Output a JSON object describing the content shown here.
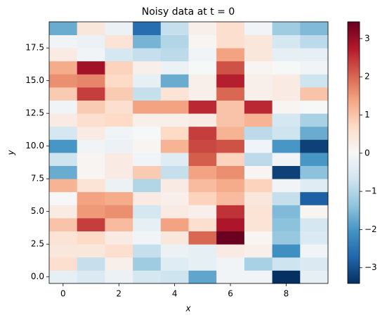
{
  "chart_data": {
    "type": "heatmap",
    "title": "Noisy data at t = 0",
    "xlabel": "x",
    "ylabel": "y",
    "xlim": [
      -0.5,
      9.5
    ],
    "ylim": [
      -0.5,
      19.5
    ],
    "xticks": [
      0,
      2,
      4,
      6,
      8
    ],
    "yticks": [
      {
        "value": 0,
        "label": "0.0"
      },
      {
        "value": 2.5,
        "label": "2.5"
      },
      {
        "value": 5,
        "label": "5.0"
      },
      {
        "value": 7.5,
        "label": "7.5"
      },
      {
        "value": 10,
        "label": "10.0"
      },
      {
        "value": 12.5,
        "label": "12.5"
      },
      {
        "value": 15,
        "label": "15.0"
      },
      {
        "value": 17.5,
        "label": "17.5"
      }
    ],
    "clim": [
      -3.41,
      3.44
    ],
    "cticks": [
      {
        "value": -3,
        "label": "−3"
      },
      {
        "value": -2,
        "label": "−2"
      },
      {
        "value": -1,
        "label": "−1"
      },
      0,
      1,
      2,
      3
    ],
    "colormap": [
      "#053061",
      "#2166ac",
      "#4393c3",
      "#92c5de",
      "#d1e5f0",
      "#f7f7f7",
      "#fddbc7",
      "#f4a582",
      "#d6604d",
      "#b2182b",
      "#67001f"
    ],
    "z": [
      [
        -0.3,
        -0.5,
        -0.2,
        -0.6,
        -0.7,
        -1.8,
        -0.1,
        -0.1,
        -3.4,
        -0.3
      ],
      [
        0.6,
        -0.8,
        0.2,
        -1.2,
        -0.4,
        -0.3,
        -0.1,
        -1.1,
        -0.7,
        -0.5
      ],
      [
        0.4,
        0.4,
        0.6,
        -0.8,
        -0.2,
        -0.3,
        0.3,
        0.2,
        -2.1,
        -0.1
      ],
      [
        0.5,
        0.7,
        0.3,
        -0.1,
        0.4,
        2.0,
        3.4,
        0.1,
        -1.3,
        -0.5
      ],
      [
        1.0,
        2.4,
        1.1,
        -0.3,
        1.4,
        0.6,
        2.8,
        0.5,
        -1.4,
        -0.6
      ],
      [
        0.3,
        1.5,
        1.6,
        -0.6,
        0.3,
        0.2,
        2.5,
        0.5,
        -1.5,
        0.1
      ],
      [
        0.0,
        1.4,
        1.3,
        0.3,
        0.2,
        0.8,
        1.1,
        0.4,
        -0.8,
        -2.8
      ],
      [
        1.2,
        0.5,
        -0.2,
        -1.0,
        0.3,
        1.1,
        1.3,
        0.8,
        -0.1,
        -0.4
      ],
      [
        -1.7,
        0.1,
        0.3,
        0.9,
        -0.8,
        1.4,
        1.6,
        0.1,
        -3.2,
        -1.4
      ],
      [
        -0.7,
        0.1,
        0.3,
        -0.1,
        -0.4,
        2.1,
        0.8,
        -0.9,
        -0.1,
        -2.0
      ],
      [
        -2.0,
        -0.1,
        -0.2,
        0.1,
        1.2,
        2.3,
        2.2,
        -0.1,
        -2.0,
        -3.2
      ],
      [
        -0.6,
        0.3,
        -0.1,
        0.0,
        0.7,
        2.4,
        1.2,
        -0.9,
        -0.7,
        -1.7
      ],
      [
        0.3,
        0.6,
        0.7,
        0.2,
        0.2,
        0.3,
        1.0,
        1.2,
        -0.6,
        -1.1
      ],
      [
        -0.1,
        0.9,
        0.6,
        1.4,
        1.4,
        2.6,
        1.0,
        2.6,
        0.1,
        0.0
      ],
      [
        0.9,
        2.4,
        0.9,
        -0.8,
        0.5,
        0.2,
        2.0,
        0.2,
        0.3,
        1.0
      ],
      [
        1.6,
        1.7,
        0.7,
        -0.3,
        -1.7,
        0.2,
        2.7,
        0.2,
        0.3,
        -0.7
      ],
      [
        1.3,
        2.9,
        0.8,
        0.2,
        -0.2,
        0.0,
        2.2,
        0.1,
        0.0,
        -0.1
      ],
      [
        0.3,
        -0.1,
        -0.6,
        -0.8,
        -0.9,
        -0.1,
        1.4,
        0.4,
        -0.3,
        -0.3
      ],
      [
        -0.1,
        -0.2,
        0.5,
        -1.6,
        -1.0,
        0.1,
        0.6,
        0.4,
        -0.6,
        -0.9
      ],
      [
        -1.7,
        0.4,
        -0.2,
        -2.6,
        -0.8,
        0.2,
        0.6,
        -0.1,
        -1.2,
        -1.5
      ]
    ]
  }
}
